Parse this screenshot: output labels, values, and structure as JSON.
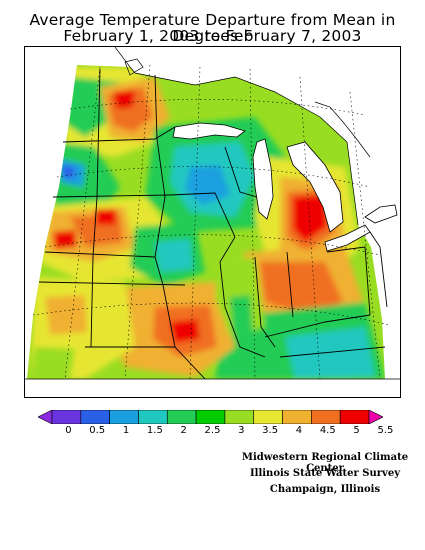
{
  "title": {
    "line1": "Average Temperature Departure from Mean in Degrees F",
    "line2": "February 1, 2003 to February 7, 2003"
  },
  "legend": {
    "labels": [
      "0",
      "0.5",
      "1",
      "1.5",
      "2",
      "2.5",
      "3",
      "3.5",
      "4",
      "4.5",
      "5",
      "5.5"
    ],
    "colors": [
      "#8a2be2",
      "#6a33e0",
      "#2a5fe8",
      "#1aa0e0",
      "#20c8c0",
      "#22cc55",
      "#00cc00",
      "#99dd22",
      "#e6e633",
      "#f0b030",
      "#f07020",
      "#ee0000",
      "#ee00aa"
    ]
  },
  "credits": {
    "line1": "Midwestern Regional Climate Center",
    "line2": "Illinois State Water Survey",
    "line3": "Champaign, Illinois"
  }
}
